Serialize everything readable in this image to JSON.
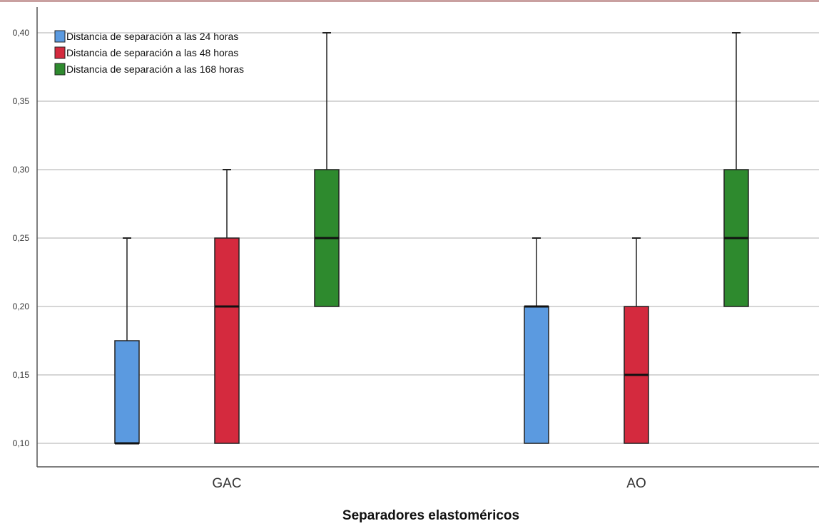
{
  "chart_data": {
    "type": "boxplot",
    "xlabel": "Separadores elastoméricos",
    "ylabel": "",
    "ylim": [
      0.083,
      0.42
    ],
    "yticks": [
      "0,10",
      "0,15",
      "0,20",
      "0,25",
      "0,30",
      "0,35",
      "0,40"
    ],
    "ytick_values": [
      0.1,
      0.15,
      0.2,
      0.25,
      0.3,
      0.35,
      0.4
    ],
    "grid": true,
    "legend_position": "top-left",
    "categories": [
      "GAC",
      "AO"
    ],
    "series": [
      {
        "name": "Distancia de separación a las 24 horas",
        "color": "#5b9ae0",
        "boxes": [
          {
            "min": 0.1,
            "q1": 0.1,
            "median": 0.1,
            "q3": 0.175,
            "max": 0.25
          },
          {
            "min": 0.1,
            "q1": 0.1,
            "median": 0.2,
            "q3": 0.2,
            "max": 0.25
          }
        ]
      },
      {
        "name": "Distancia de separación a las 48 horas",
        "color": "#d42a3e",
        "boxes": [
          {
            "min": 0.1,
            "q1": 0.1,
            "median": 0.2,
            "q3": 0.25,
            "max": 0.3
          },
          {
            "min": 0.1,
            "q1": 0.1,
            "median": 0.15,
            "q3": 0.2,
            "max": 0.25
          }
        ]
      },
      {
        "name": "Distancia de separación a las 168 horas",
        "color": "#2e8a2e",
        "boxes": [
          {
            "min": 0.2,
            "q1": 0.2,
            "median": 0.25,
            "q3": 0.3,
            "max": 0.4
          },
          {
            "min": 0.2,
            "q1": 0.2,
            "median": 0.25,
            "q3": 0.3,
            "max": 0.4
          }
        ]
      }
    ]
  }
}
